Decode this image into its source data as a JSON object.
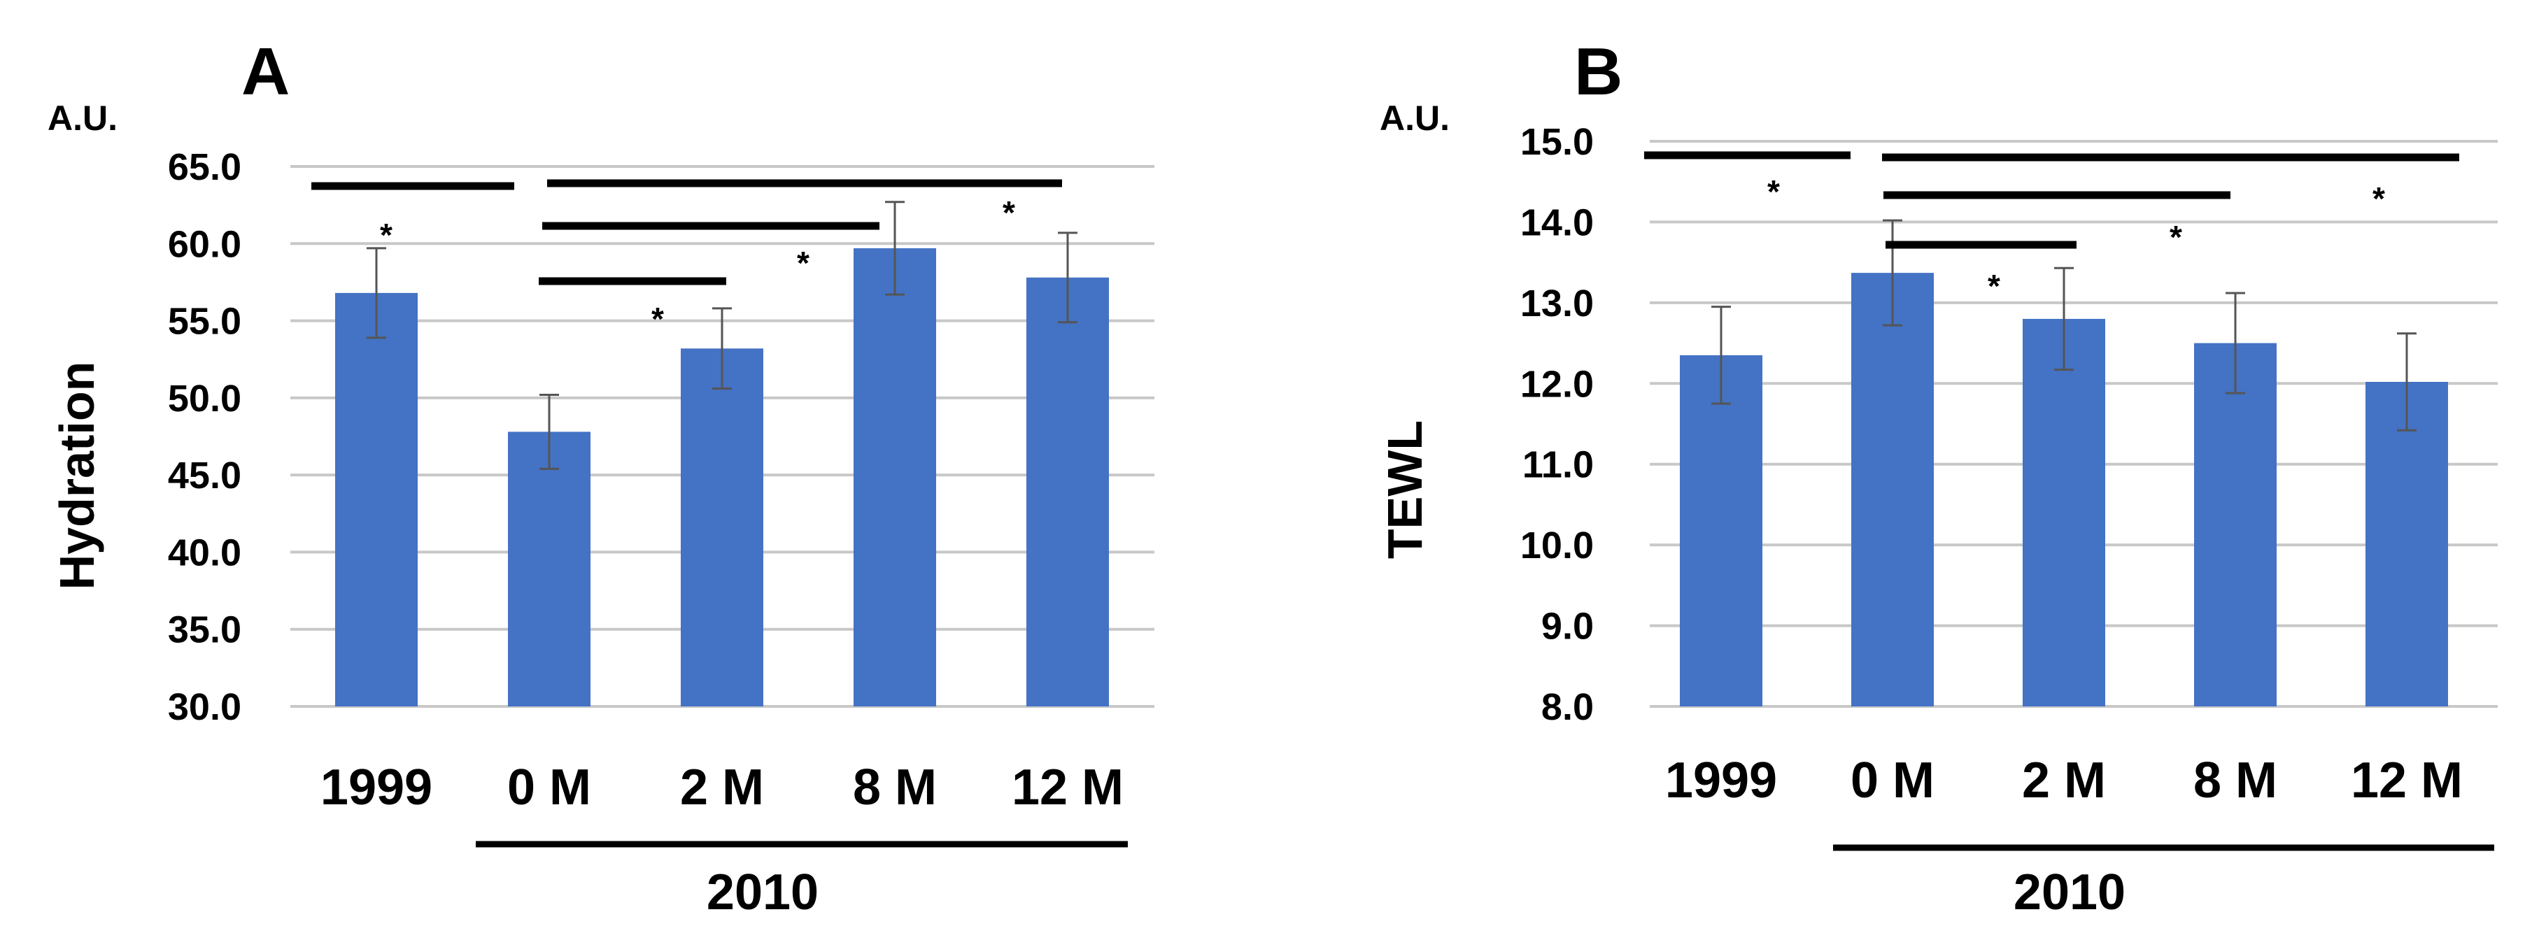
{
  "chart_data": [
    {
      "type": "bar",
      "panel": "A",
      "unit_label": "A.U.",
      "ylabel": "Hydration",
      "categories": [
        "1999",
        "0 M",
        "2 M",
        "8 M",
        "12 M"
      ],
      "values": [
        56.8,
        47.8,
        53.2,
        59.7,
        57.8
      ],
      "errors": [
        2.9,
        2.4,
        2.6,
        3.0,
        2.9
      ],
      "ylim": [
        30.0,
        65.0
      ],
      "yticks": [
        "30.0",
        "35.0",
        "40.0",
        "45.0",
        "50.0",
        "55.0",
        "60.0",
        "65.0"
      ],
      "group_label": "2010",
      "group_categories": [
        "0 M",
        "2 M",
        "8 M",
        "12 M"
      ],
      "significance": [
        {
          "from": "1999",
          "to": "0 M",
          "mark": "*"
        },
        {
          "from": "0 M",
          "to": "12 M",
          "mark": "*"
        },
        {
          "from": "0 M",
          "to": "8 M",
          "mark": "*"
        },
        {
          "from": "0 M",
          "to": "2 M",
          "mark": "*"
        }
      ]
    },
    {
      "type": "bar",
      "panel": "B",
      "unit_label": "A.U.",
      "ylabel": "TEWL",
      "categories": [
        "1999",
        "0 M",
        "2 M",
        "8 M",
        "12 M"
      ],
      "values": [
        12.35,
        13.37,
        12.8,
        12.5,
        12.02
      ],
      "errors": [
        0.6,
        0.65,
        0.63,
        0.62,
        0.6
      ],
      "ylim": [
        8.0,
        15.0
      ],
      "yticks": [
        "8.0",
        "9.0",
        "10.0",
        "11.0",
        "12.0",
        "13.0",
        "14.0",
        "15.0"
      ],
      "group_label": "2010",
      "group_categories": [
        "0 M",
        "2 M",
        "8 M",
        "12 M"
      ],
      "significance": [
        {
          "from": "1999",
          "to": "0 M",
          "mark": "*"
        },
        {
          "from": "0 M",
          "to": "12 M",
          "mark": "*"
        },
        {
          "from": "0 M",
          "to": "8 M",
          "mark": "*"
        },
        {
          "from": "0 M",
          "to": "2 M",
          "mark": "*"
        }
      ]
    }
  ]
}
